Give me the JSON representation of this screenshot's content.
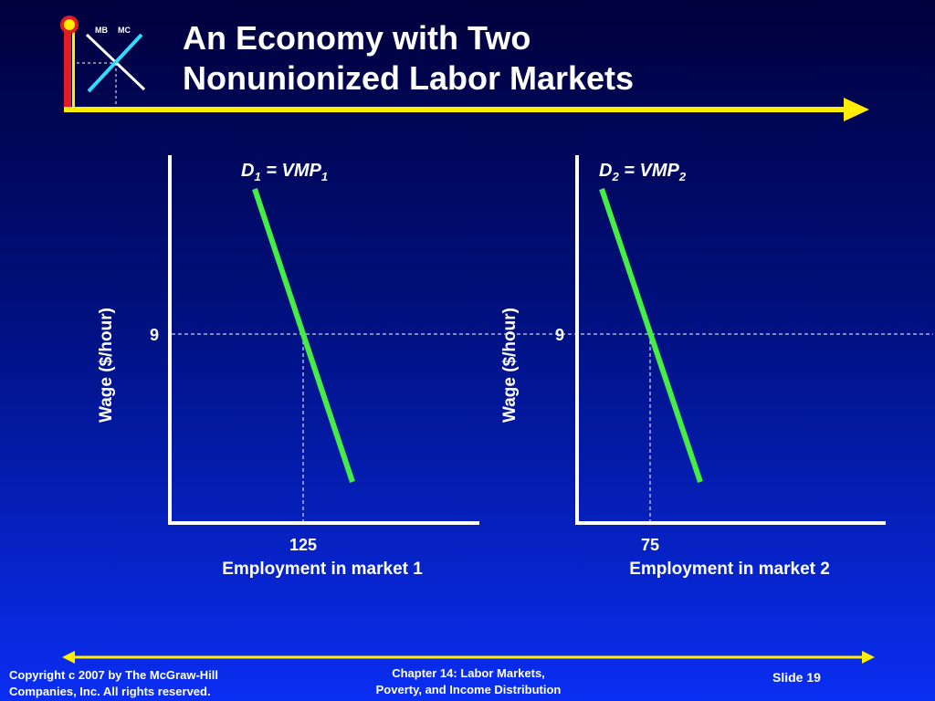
{
  "slide": {
    "title_line1": "An Economy with Two",
    "title_line2": "Nonunionized Labor Markets",
    "logo": {
      "mb_label": "MB",
      "mc_label": "MC",
      "colors": {
        "frame_red": "#e31c23",
        "frame_yellow": "#ffee00",
        "mb_line": "#ffffff",
        "mc_line": "#33ddff"
      }
    },
    "footer": {
      "copyright_line1": "Copyright c 2007 by The McGraw-Hill",
      "copyright_line2": "Companies, Inc.  All rights reserved.",
      "chapter_line1": "Chapter 14: Labor Markets,",
      "chapter_line2": "Poverty, and Income Distribution",
      "slide_number": "Slide 19"
    },
    "colors": {
      "accent_yellow": "#ffee00",
      "demand_green": "#44ee44",
      "text": "#ffffff"
    }
  },
  "chart_data": [
    {
      "type": "line",
      "series": [
        {
          "name": "D1 = VMP1",
          "color": "#44ee44"
        }
      ],
      "demand_label": {
        "base": "D",
        "sub1": "1",
        "mid": " = VMP",
        "sub2": "1"
      },
      "equilibrium": {
        "wage": 9,
        "employment": 125
      },
      "y_tick_label": "9",
      "x_tick_label": "125",
      "xlabel": "Employment in market 1",
      "ylabel": "Wage ($/hour)"
    },
    {
      "type": "line",
      "series": [
        {
          "name": "D2 = VMP2",
          "color": "#44ee44"
        }
      ],
      "demand_label": {
        "base": "D",
        "sub1": "2",
        "mid": " = VMP",
        "sub2": "2"
      },
      "equilibrium": {
        "wage": 9,
        "employment": 75
      },
      "y_tick_label": "9",
      "x_tick_label": "75",
      "xlabel": "Employment in market 2",
      "ylabel": "Wage ($/hour)"
    }
  ]
}
